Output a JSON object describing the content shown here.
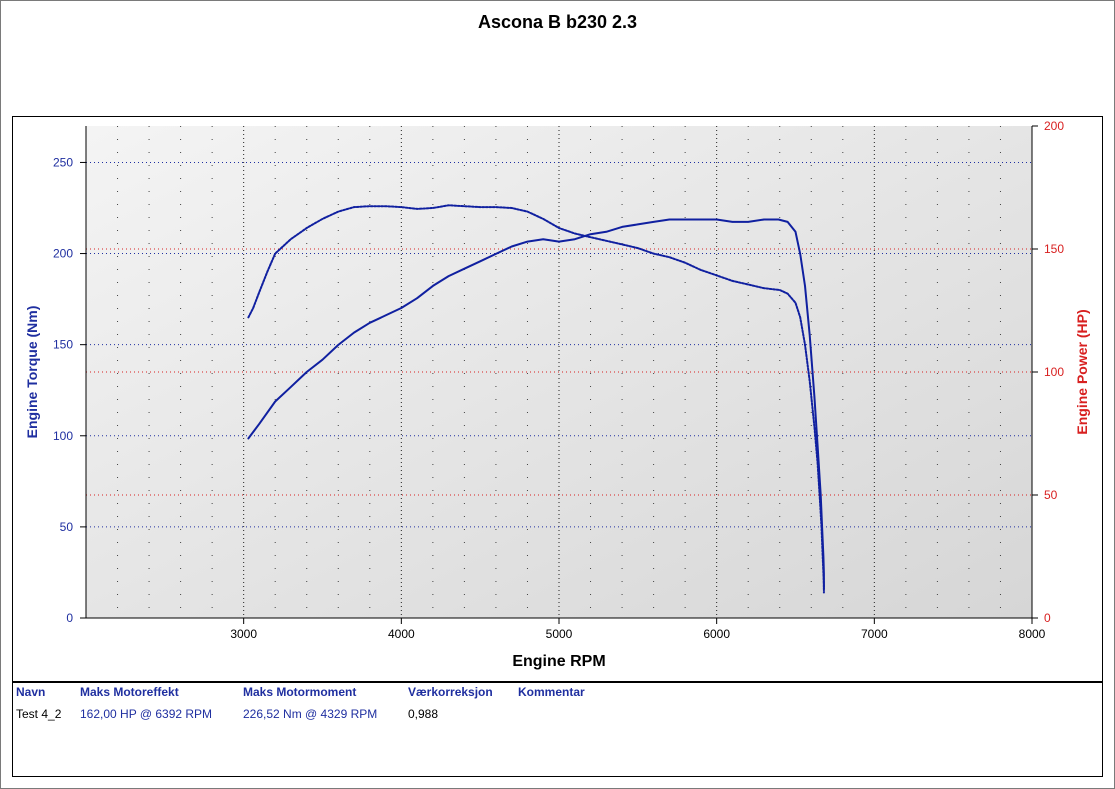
{
  "chart_data": {
    "type": "line",
    "title": "Ascona B b230 2.3",
    "xlabel": "Engine RPM",
    "ylabel_left": "Engine Torque (Nm)",
    "ylabel_right": "Engine Power (HP)",
    "xlim": [
      2000,
      8000
    ],
    "ylim_left": [
      0,
      270
    ],
    "ylim_right": [
      0,
      200
    ],
    "x_ticks": [
      "3000",
      "4000",
      "5000",
      "6000",
      "7000",
      "8000"
    ],
    "y_left_ticks": [
      "0",
      "50",
      "100",
      "150",
      "200",
      "250"
    ],
    "y_right_ticks": [
      "0",
      "50",
      "100",
      "150",
      "200"
    ],
    "grid": true,
    "colors": {
      "torque": "#1020a0",
      "power": "#1020a0",
      "left_axis": "#1f2fa0",
      "right_axis": "#d82020",
      "plot_bg": "#e4e4e4"
    },
    "series": [
      {
        "axis": "left",
        "x": [
          3030,
          3060,
          3100,
          3150,
          3200,
          3300,
          3400,
          3500,
          3600,
          3700,
          3800,
          3900,
          4000,
          4100,
          4200,
          4300,
          4400,
          4500,
          4600,
          4700,
          4800,
          4900,
          5000,
          5100,
          5200,
          5300,
          5400,
          5500,
          5600,
          5700,
          5800,
          5900,
          6000,
          6100,
          6200,
          6300,
          6400,
          6450,
          6500,
          6530,
          6560,
          6590,
          6620,
          6640,
          6655,
          6665,
          6672,
          6677,
          6680,
          6680
        ],
        "values": [
          165,
          170,
          179,
          190,
          200,
          208,
          214,
          219,
          223,
          225.5,
          226,
          226,
          225.5,
          224.5,
          225,
          226.5,
          226,
          225.5,
          225.5,
          225,
          223,
          219,
          214,
          211,
          209,
          207,
          205,
          203,
          200,
          198,
          195,
          191,
          188,
          185,
          183,
          181,
          180,
          178,
          173,
          165,
          150,
          130,
          105,
          85,
          65,
          50,
          35,
          25,
          18,
          14
        ]
      },
      {
        "axis": "right",
        "x": [
          3030,
          3100,
          3200,
          3300,
          3400,
          3500,
          3600,
          3700,
          3800,
          3900,
          4000,
          4100,
          4200,
          4300,
          4400,
          4500,
          4600,
          4700,
          4800,
          4900,
          5000,
          5100,
          5200,
          5300,
          5400,
          5500,
          5600,
          5700,
          5800,
          5900,
          6000,
          6100,
          6200,
          6300,
          6392,
          6450,
          6500,
          6530,
          6560,
          6590,
          6620,
          6640,
          6660,
          6670,
          6677,
          6680,
          6680
        ],
        "values": [
          73,
          79,
          88,
          94,
          100,
          105,
          111,
          116,
          120,
          123,
          126,
          130,
          135,
          139,
          142,
          145,
          148,
          151,
          153,
          154,
          153,
          154,
          156,
          157,
          159,
          160,
          161,
          162,
          162,
          162,
          162,
          161,
          161,
          162,
          162,
          161,
          157,
          148,
          135,
          115,
          90,
          70,
          50,
          35,
          25,
          18,
          12
        ]
      }
    ]
  },
  "legend": {
    "headers": {
      "name": "Navn",
      "power": "Maks Motoreffekt",
      "torque": "Maks Motormoment",
      "correction": "Værkorreksjon",
      "comment": "Kommentar"
    },
    "row": {
      "name": "Test 4_2",
      "power": "162,00 HP @ 6392 RPM",
      "torque": "226,52 Nm @ 4329 RPM",
      "correction": "0,988",
      "comment": ""
    }
  }
}
